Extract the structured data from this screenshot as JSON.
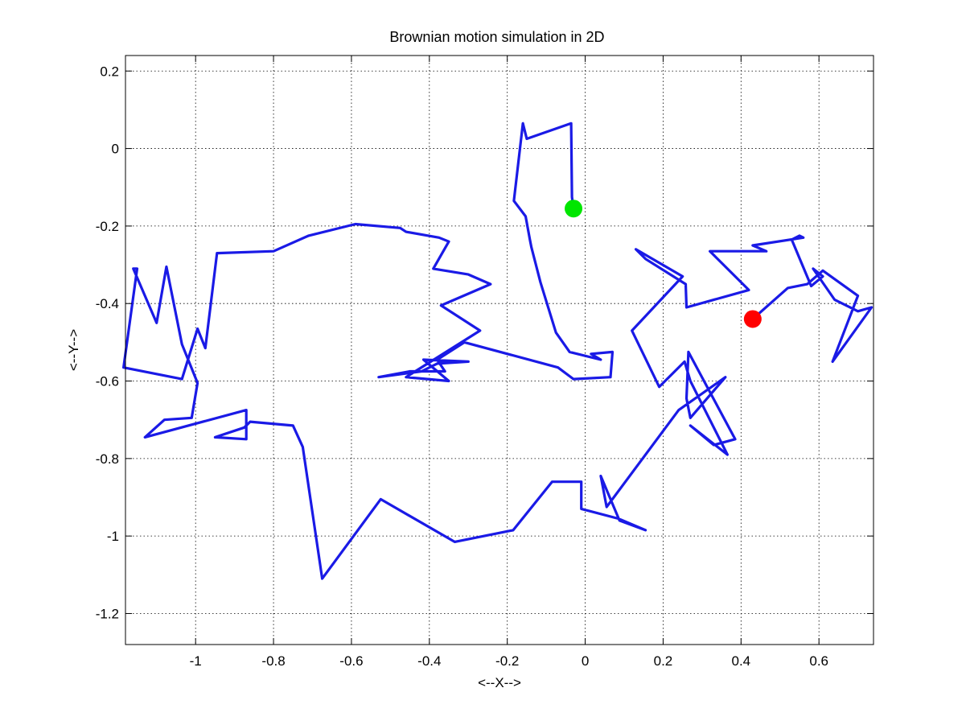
{
  "chart_data": {
    "type": "line",
    "title": "Brownian motion simulation in 2D",
    "xlabel": "<--X-->",
    "ylabel": "<--Y-->",
    "xlim": [
      -1.18,
      0.74
    ],
    "ylim": [
      -1.28,
      0.24
    ],
    "grid": true,
    "xticks": [
      -1,
      -0.8,
      -0.6,
      -0.4,
      -0.2,
      0,
      0.2,
      0.4,
      0.6
    ],
    "xtick_labels": [
      "-1",
      "-0.8",
      "-0.6",
      "-0.4",
      "-0.2",
      "0",
      "0.2",
      "0.4",
      "0.6"
    ],
    "yticks": [
      0.2,
      0,
      -0.2,
      -0.4,
      -0.6,
      -0.8,
      -1,
      -1.2
    ],
    "ytick_labels": [
      "0.2",
      "0",
      "-0.2",
      "-0.4",
      "-0.6",
      "-0.8",
      "-1",
      "-1.2"
    ],
    "series": [
      {
        "color": "#1a1ae6",
        "x": [
          -0.03,
          -0.034,
          -0.036,
          -0.15,
          -0.16,
          -0.183,
          -0.153,
          -0.142,
          -0.138,
          -0.115,
          -0.075,
          -0.04,
          0.04,
          0.015,
          0.07,
          0.065,
          -0.03,
          -0.07,
          -0.31,
          -0.38,
          -0.36,
          -0.45,
          -0.53,
          -0.42,
          -0.38,
          -0.3,
          -0.415,
          -0.35,
          -0.46,
          -0.27,
          -0.37,
          -0.243,
          -0.3,
          -0.39,
          -0.35,
          -0.375,
          -0.46,
          -0.475,
          -0.59,
          -0.71,
          -0.8,
          -0.945,
          -0.975,
          -0.995,
          -1.035,
          -1.185,
          -1.15,
          -1.16,
          -1.1,
          -1.075,
          -1.035,
          -0.995,
          -1.01,
          -1.08,
          -1.13,
          -0.87,
          -0.87,
          -0.95,
          -0.875,
          -0.86,
          -0.75,
          -0.725,
          -0.7,
          -0.675,
          -0.525,
          -0.335,
          -0.185,
          -0.085,
          -0.035,
          -0.01,
          -0.01,
          0.085,
          0.155,
          0.088,
          0.04,
          0.055,
          0.24,
          0.36,
          0.27,
          0.26,
          0.265,
          0.385,
          0.33,
          0.27,
          0.365,
          0.27,
          0.255,
          0.19,
          0.12,
          0.25,
          0.13,
          0.155,
          0.258,
          0.26,
          0.42,
          0.32,
          0.465,
          0.43,
          0.56,
          0.55,
          0.53,
          0.58,
          0.61,
          0.585,
          0.64,
          0.7,
          0.735,
          0.635,
          0.7,
          0.61,
          0.57,
          0.52,
          0.43
        ],
        "y": [
          -0.155,
          -0.125,
          0.065,
          0.025,
          0.065,
          -0.135,
          -0.175,
          -0.235,
          -0.255,
          -0.345,
          -0.475,
          -0.525,
          -0.545,
          -0.53,
          -0.525,
          -0.59,
          -0.595,
          -0.565,
          -0.5,
          -0.545,
          -0.575,
          -0.575,
          -0.59,
          -0.575,
          -0.555,
          -0.55,
          -0.545,
          -0.6,
          -0.59,
          -0.47,
          -0.405,
          -0.35,
          -0.325,
          -0.31,
          -0.24,
          -0.23,
          -0.215,
          -0.205,
          -0.195,
          -0.225,
          -0.265,
          -0.27,
          -0.515,
          -0.465,
          -0.595,
          -0.565,
          -0.31,
          -0.31,
          -0.45,
          -0.305,
          -0.505,
          -0.605,
          -0.695,
          -0.7,
          -0.745,
          -0.675,
          -0.75,
          -0.745,
          -0.72,
          -0.705,
          -0.715,
          -0.77,
          -0.94,
          -1.11,
          -0.905,
          -1.015,
          -0.985,
          -0.86,
          -0.86,
          -0.86,
          -0.93,
          -0.955,
          -0.985,
          -0.96,
          -0.845,
          -0.925,
          -0.675,
          -0.59,
          -0.695,
          -0.645,
          -0.525,
          -0.75,
          -0.765,
          -0.715,
          -0.79,
          -0.6,
          -0.55,
          -0.615,
          -0.47,
          -0.33,
          -0.26,
          -0.285,
          -0.35,
          -0.41,
          -0.365,
          -0.265,
          -0.265,
          -0.25,
          -0.23,
          -0.225,
          -0.235,
          -0.355,
          -0.33,
          -0.31,
          -0.39,
          -0.42,
          -0.41,
          -0.55,
          -0.38,
          -0.315,
          -0.35,
          -0.36,
          -0.44
        ]
      }
    ],
    "markers": [
      {
        "role": "start",
        "x": -0.03,
        "y": -0.155,
        "color": "#00e600"
      },
      {
        "role": "end",
        "x": 0.43,
        "y": -0.44,
        "color": "#ff0000"
      }
    ]
  }
}
